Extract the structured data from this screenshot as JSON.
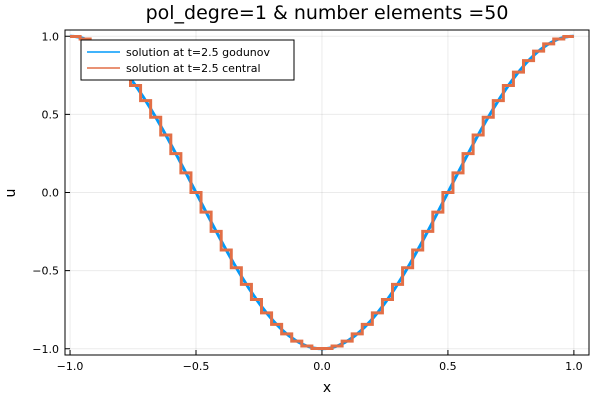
{
  "chart_data": {
    "type": "line",
    "title": "pol_degre=1 & number elements =50",
    "xlabel": "x",
    "ylabel": "u",
    "xlim": [
      -1.02,
      1.06
    ],
    "ylim": [
      -1.04,
      1.04
    ],
    "xticks": [
      -1.0,
      -0.5,
      0.0,
      0.5,
      1.0
    ],
    "xtick_labels": [
      "−1.0",
      "−0.5",
      "0.0",
      "0.5",
      "1.0"
    ],
    "yticks": [
      -1.0,
      -0.5,
      0.0,
      0.5,
      1.0
    ],
    "ytick_labels": [
      "−1.0",
      "−0.5",
      "0.0",
      "0.5",
      "1.0"
    ],
    "grid": true,
    "legend_position": "top-left",
    "n_elements": 50,
    "series": [
      {
        "name": "solution at t=2.5 godunov",
        "color": "#009AFA",
        "style": "smooth",
        "function": "-cos(pi*x)",
        "x_range": [
          -1.0,
          1.0
        ]
      },
      {
        "name": "solution at t=2.5 central",
        "color": "#E26F46",
        "style": "piecewise-constant",
        "function": "-cos(pi*x)",
        "x_range": [
          -1.0,
          1.0
        ]
      }
    ]
  }
}
